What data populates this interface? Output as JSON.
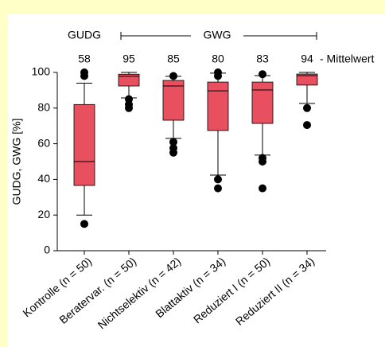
{
  "chart_data": {
    "type": "box",
    "group_left": "GUDG",
    "group_right": "GWG",
    "mean_label": "- Mittelwert",
    "ylabel": "GUDG, GWG [%]",
    "ylim": [
      0,
      100
    ],
    "yticks": [
      0,
      20,
      40,
      60,
      80,
      100
    ],
    "color": "#e8505f",
    "categories": [
      "Kontrolle (n = 50)",
      "Beratervar. (n = 50)",
      "Nichtselektiv (n = 42)",
      "Blattaktiv (n = 34)",
      "Reduziert I (n = 50)",
      "Reduziert II (n = 34)"
    ],
    "means": [
      58,
      95,
      85,
      80,
      83,
      94
    ],
    "boxes": [
      {
        "whisker_low": 20,
        "q1": 36.6,
        "median": 50,
        "q3": 82,
        "whisker_high": 94,
        "outliers": [
          15,
          98,
          100
        ]
      },
      {
        "whisker_low": 85.7,
        "q1": 92.4,
        "median": 97.8,
        "q3": 99,
        "whisker_high": 100,
        "outliers": [
          80,
          82,
          85
        ]
      },
      {
        "whisker_low": 63,
        "q1": 73.2,
        "median": 92.4,
        "q3": 95.5,
        "whisker_high": 97.8,
        "outliers": [
          98,
          61,
          57.6,
          55
        ]
      },
      {
        "whisker_low": 42.4,
        "q1": 67.4,
        "median": 89.7,
        "q3": 94.6,
        "whisker_high": 99.6,
        "outliers": [
          40,
          35,
          98,
          100
        ]
      },
      {
        "whisker_low": 53.6,
        "q1": 71.4,
        "median": 90.2,
        "q3": 94.6,
        "whisker_high": 98.2,
        "outliers": [
          52,
          50,
          35,
          99
        ]
      },
      {
        "whisker_low": 82.6,
        "q1": 92.9,
        "median": 98.2,
        "q3": 99.1,
        "whisker_high": 100,
        "outliers": [
          80,
          70.5
        ]
      }
    ]
  }
}
